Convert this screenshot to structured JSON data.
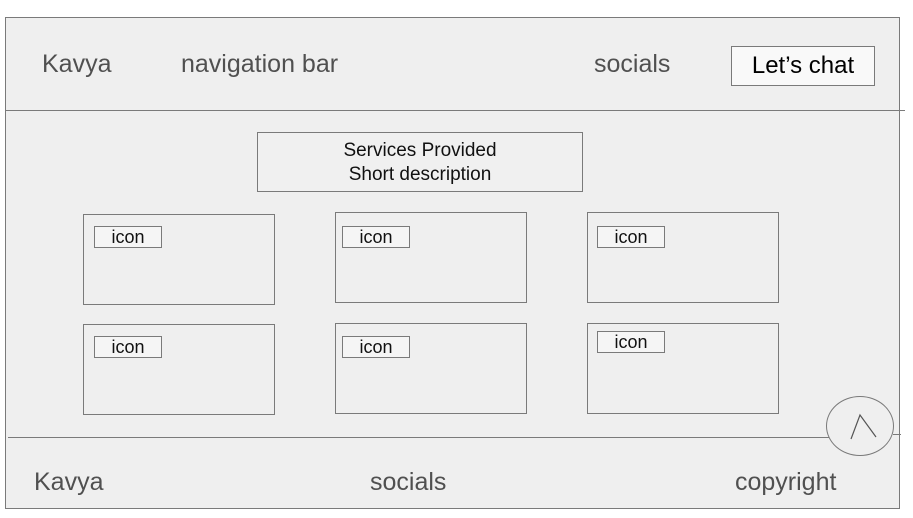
{
  "header": {
    "brand": "Kavya",
    "nav_label": "navigation bar",
    "socials_label": "socials",
    "cta_label": "Let’s chat"
  },
  "services": {
    "title": "Services Provided",
    "description": "Short description",
    "cards": [
      {
        "icon_label": "icon"
      },
      {
        "icon_label": "icon"
      },
      {
        "icon_label": "icon"
      },
      {
        "icon_label": "icon"
      },
      {
        "icon_label": "icon"
      },
      {
        "icon_label": "icon"
      }
    ]
  },
  "scroll_top": {
    "icon": "caret-up-icon"
  },
  "footer": {
    "brand": "Kavya",
    "socials_label": "socials",
    "copyright_label": "copyright"
  }
}
